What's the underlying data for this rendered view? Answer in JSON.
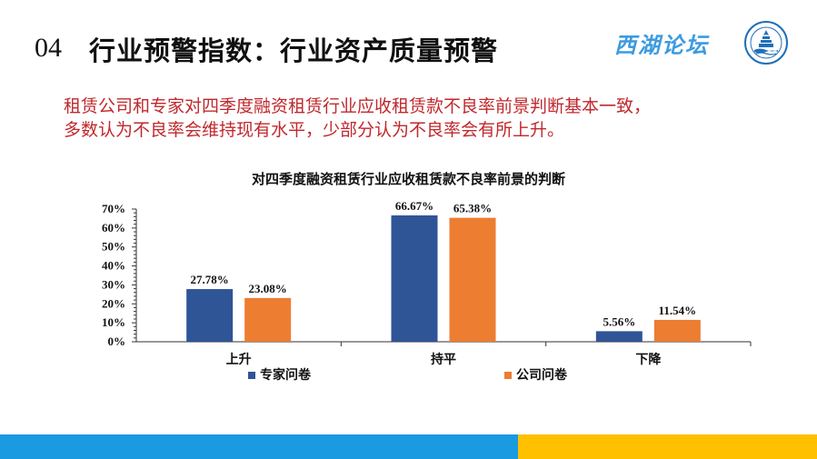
{
  "header": {
    "section_number": "04",
    "title": "行业预警指数：行业资产质量预警",
    "brand": "西湖论坛"
  },
  "intro_lines": [
    "租赁公司和专家对四季度融资租赁行业应收租赁款不良率前景判断基本一致，",
    "多数认为不良率会维持现有水平，少部分认为不良率会有所上升。"
  ],
  "colors": {
    "series_expert": "#2f5597",
    "series_company": "#ed7d31",
    "intro_text": "#c0282d",
    "footer_blue": "#1a9ae0",
    "footer_yellow": "#ffc000",
    "brand": "#3d9be0"
  },
  "chart_data": {
    "type": "bar",
    "title": "对四季度融资租赁行业应收租赁款不良率前景的判断",
    "categories": [
      "上升",
      "持平",
      "下降"
    ],
    "series": [
      {
        "name": "专家问卷",
        "values": [
          27.78,
          66.67,
          5.56
        ],
        "labels": [
          "27.78%",
          "66.67%",
          "5.56%"
        ]
      },
      {
        "name": "公司问卷",
        "values": [
          23.08,
          65.38,
          11.54
        ],
        "labels": [
          "23.08%",
          "65.38%",
          "11.54%"
        ]
      }
    ],
    "yticks": [
      "0%",
      "10%",
      "20%",
      "30%",
      "40%",
      "50%",
      "60%",
      "70%"
    ],
    "ylim": [
      0,
      70
    ],
    "legend": "bottom",
    "grid": false
  }
}
